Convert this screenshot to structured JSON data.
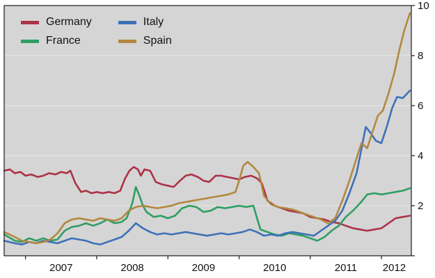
{
  "chart_data": {
    "type": "line",
    "title": "",
    "xlabel": "",
    "ylabel": "",
    "xlim": [
      2006.7,
      2012.42
    ],
    "ylim": [
      0,
      10
    ],
    "yticks": [
      0,
      2,
      4,
      6,
      8,
      10
    ],
    "ytick_labels": [
      "",
      "2",
      "4",
      "6",
      "8",
      "10"
    ],
    "xticks": [
      2007,
      2008,
      2009,
      2010,
      2011,
      2012
    ],
    "xtick_labels": [
      "2007",
      "2008",
      "2009",
      "2010",
      "2011",
      "2012"
    ],
    "grid": "horizontal-white-on-gray",
    "legend_position": "top-left",
    "plot_bg": "#d5d5d5",
    "grid_color": "#e9e9e9",
    "axis_color": "#1a1a1a",
    "tick_label_color": "#111111",
    "series": [
      {
        "name": "Germany",
        "color": "#ac3247",
        "points": [
          [
            2006.7,
            3.4
          ],
          [
            2006.78,
            3.45
          ],
          [
            2006.85,
            3.3
          ],
          [
            2006.93,
            3.35
          ],
          [
            2007.0,
            3.2
          ],
          [
            2007.08,
            3.25
          ],
          [
            2007.17,
            3.15
          ],
          [
            2007.25,
            3.2
          ],
          [
            2007.33,
            3.3
          ],
          [
            2007.42,
            3.25
          ],
          [
            2007.5,
            3.35
          ],
          [
            2007.58,
            3.3
          ],
          [
            2007.63,
            3.4
          ],
          [
            2007.7,
            2.9
          ],
          [
            2007.78,
            2.55
          ],
          [
            2007.85,
            2.6
          ],
          [
            2007.93,
            2.5
          ],
          [
            2008.0,
            2.55
          ],
          [
            2008.08,
            2.5
          ],
          [
            2008.17,
            2.55
          ],
          [
            2008.25,
            2.5
          ],
          [
            2008.33,
            2.6
          ],
          [
            2008.4,
            3.1
          ],
          [
            2008.46,
            3.4
          ],
          [
            2008.52,
            3.55
          ],
          [
            2008.58,
            3.45
          ],
          [
            2008.62,
            3.2
          ],
          [
            2008.67,
            3.45
          ],
          [
            2008.75,
            3.4
          ],
          [
            2008.83,
            2.95
          ],
          [
            2008.92,
            2.85
          ],
          [
            2009.0,
            2.8
          ],
          [
            2009.08,
            2.75
          ],
          [
            2009.17,
            3.0
          ],
          [
            2009.25,
            3.2
          ],
          [
            2009.33,
            3.25
          ],
          [
            2009.42,
            3.15
          ],
          [
            2009.5,
            3.0
          ],
          [
            2009.58,
            2.95
          ],
          [
            2009.67,
            3.2
          ],
          [
            2009.75,
            3.2
          ],
          [
            2009.83,
            3.15
          ],
          [
            2009.92,
            3.1
          ],
          [
            2010.0,
            3.05
          ],
          [
            2010.08,
            3.15
          ],
          [
            2010.17,
            3.2
          ],
          [
            2010.25,
            3.1
          ],
          [
            2010.32,
            2.9
          ],
          [
            2010.4,
            2.2
          ],
          [
            2010.5,
            2.0
          ],
          [
            2010.6,
            1.9
          ],
          [
            2010.7,
            1.8
          ],
          [
            2010.8,
            1.75
          ],
          [
            2010.9,
            1.7
          ],
          [
            2011.0,
            1.55
          ],
          [
            2011.1,
            1.5
          ],
          [
            2011.2,
            1.45
          ],
          [
            2011.3,
            1.35
          ],
          [
            2011.4,
            1.3
          ],
          [
            2011.5,
            1.2
          ],
          [
            2011.6,
            1.1
          ],
          [
            2011.7,
            1.05
          ],
          [
            2011.8,
            1.0
          ],
          [
            2011.9,
            1.05
          ],
          [
            2012.0,
            1.1
          ],
          [
            2012.1,
            1.3
          ],
          [
            2012.2,
            1.5
          ],
          [
            2012.3,
            1.55
          ],
          [
            2012.4,
            1.6
          ]
        ]
      },
      {
        "name": "France",
        "color": "#2e9e62",
        "points": [
          [
            2006.7,
            0.85
          ],
          [
            2006.85,
            0.6
          ],
          [
            2006.95,
            0.55
          ],
          [
            2007.05,
            0.7
          ],
          [
            2007.15,
            0.6
          ],
          [
            2007.25,
            0.7
          ],
          [
            2007.35,
            0.6
          ],
          [
            2007.45,
            0.65
          ],
          [
            2007.55,
            1.0
          ],
          [
            2007.65,
            1.15
          ],
          [
            2007.75,
            1.2
          ],
          [
            2007.85,
            1.3
          ],
          [
            2007.95,
            1.2
          ],
          [
            2008.05,
            1.3
          ],
          [
            2008.15,
            1.45
          ],
          [
            2008.25,
            1.3
          ],
          [
            2008.35,
            1.35
          ],
          [
            2008.42,
            1.5
          ],
          [
            2008.5,
            2.1
          ],
          [
            2008.55,
            2.75
          ],
          [
            2008.6,
            2.4
          ],
          [
            2008.65,
            2.0
          ],
          [
            2008.7,
            1.75
          ],
          [
            2008.8,
            1.55
          ],
          [
            2008.9,
            1.6
          ],
          [
            2009.0,
            1.5
          ],
          [
            2009.1,
            1.6
          ],
          [
            2009.2,
            1.9
          ],
          [
            2009.3,
            2.0
          ],
          [
            2009.4,
            1.95
          ],
          [
            2009.5,
            1.75
          ],
          [
            2009.6,
            1.8
          ],
          [
            2009.7,
            1.95
          ],
          [
            2009.8,
            1.9
          ],
          [
            2009.9,
            1.95
          ],
          [
            2010.0,
            2.0
          ],
          [
            2010.1,
            1.95
          ],
          [
            2010.2,
            2.0
          ],
          [
            2010.3,
            1.05
          ],
          [
            2010.4,
            0.95
          ],
          [
            2010.5,
            0.85
          ],
          [
            2010.6,
            0.8
          ],
          [
            2010.7,
            0.9
          ],
          [
            2010.8,
            0.85
          ],
          [
            2010.9,
            0.8
          ],
          [
            2011.0,
            0.7
          ],
          [
            2011.1,
            0.6
          ],
          [
            2011.2,
            0.75
          ],
          [
            2011.3,
            1.0
          ],
          [
            2011.4,
            1.2
          ],
          [
            2011.5,
            1.55
          ],
          [
            2011.6,
            1.8
          ],
          [
            2011.7,
            2.1
          ],
          [
            2011.8,
            2.45
          ],
          [
            2011.9,
            2.5
          ],
          [
            2012.0,
            2.45
          ],
          [
            2012.1,
            2.5
          ],
          [
            2012.2,
            2.55
          ],
          [
            2012.3,
            2.6
          ],
          [
            2012.4,
            2.7
          ]
        ]
      },
      {
        "name": "Italy",
        "color": "#3d70b8",
        "points": [
          [
            2006.7,
            0.6
          ],
          [
            2006.85,
            0.5
          ],
          [
            2006.95,
            0.45
          ],
          [
            2007.05,
            0.55
          ],
          [
            2007.15,
            0.5
          ],
          [
            2007.25,
            0.6
          ],
          [
            2007.35,
            0.55
          ],
          [
            2007.45,
            0.5
          ],
          [
            2007.55,
            0.6
          ],
          [
            2007.65,
            0.7
          ],
          [
            2007.75,
            0.65
          ],
          [
            2007.85,
            0.6
          ],
          [
            2007.95,
            0.5
          ],
          [
            2008.05,
            0.45
          ],
          [
            2008.15,
            0.55
          ],
          [
            2008.25,
            0.65
          ],
          [
            2008.35,
            0.75
          ],
          [
            2008.45,
            1.0
          ],
          [
            2008.55,
            1.3
          ],
          [
            2008.65,
            1.1
          ],
          [
            2008.75,
            0.95
          ],
          [
            2008.85,
            0.85
          ],
          [
            2008.95,
            0.9
          ],
          [
            2009.05,
            0.85
          ],
          [
            2009.15,
            0.9
          ],
          [
            2009.25,
            0.95
          ],
          [
            2009.35,
            0.9
          ],
          [
            2009.45,
            0.85
          ],
          [
            2009.55,
            0.8
          ],
          [
            2009.65,
            0.85
          ],
          [
            2009.75,
            0.9
          ],
          [
            2009.85,
            0.85
          ],
          [
            2009.95,
            0.9
          ],
          [
            2010.05,
            0.95
          ],
          [
            2010.15,
            1.05
          ],
          [
            2010.25,
            0.95
          ],
          [
            2010.35,
            0.8
          ],
          [
            2010.45,
            0.85
          ],
          [
            2010.55,
            0.8
          ],
          [
            2010.65,
            0.9
          ],
          [
            2010.75,
            0.95
          ],
          [
            2010.85,
            0.9
          ],
          [
            2010.95,
            0.85
          ],
          [
            2011.05,
            0.8
          ],
          [
            2011.15,
            1.0
          ],
          [
            2011.25,
            1.2
          ],
          [
            2011.35,
            1.4
          ],
          [
            2011.45,
            1.8
          ],
          [
            2011.55,
            2.5
          ],
          [
            2011.65,
            3.3
          ],
          [
            2011.7,
            4.0
          ],
          [
            2011.78,
            5.15
          ],
          [
            2011.85,
            4.9
          ],
          [
            2011.92,
            4.6
          ],
          [
            2012.0,
            4.5
          ],
          [
            2012.08,
            5.2
          ],
          [
            2012.15,
            5.9
          ],
          [
            2012.22,
            6.35
          ],
          [
            2012.3,
            6.3
          ],
          [
            2012.4,
            6.6
          ]
        ]
      },
      {
        "name": "Spain",
        "color": "#b2883e",
        "points": [
          [
            2006.7,
            0.95
          ],
          [
            2006.85,
            0.75
          ],
          [
            2006.95,
            0.6
          ],
          [
            2007.05,
            0.55
          ],
          [
            2007.15,
            0.5
          ],
          [
            2007.25,
            0.55
          ],
          [
            2007.35,
            0.65
          ],
          [
            2007.45,
            0.9
          ],
          [
            2007.55,
            1.3
          ],
          [
            2007.65,
            1.45
          ],
          [
            2007.75,
            1.5
          ],
          [
            2007.85,
            1.45
          ],
          [
            2007.95,
            1.4
          ],
          [
            2008.05,
            1.5
          ],
          [
            2008.15,
            1.45
          ],
          [
            2008.25,
            1.4
          ],
          [
            2008.35,
            1.5
          ],
          [
            2008.45,
            1.8
          ],
          [
            2008.55,
            1.95
          ],
          [
            2008.65,
            2.0
          ],
          [
            2008.75,
            1.95
          ],
          [
            2008.85,
            1.9
          ],
          [
            2008.95,
            1.95
          ],
          [
            2009.05,
            2.0
          ],
          [
            2009.15,
            2.1
          ],
          [
            2009.25,
            2.15
          ],
          [
            2009.35,
            2.2
          ],
          [
            2009.45,
            2.25
          ],
          [
            2009.55,
            2.3
          ],
          [
            2009.65,
            2.35
          ],
          [
            2009.75,
            2.4
          ],
          [
            2009.85,
            2.45
          ],
          [
            2009.95,
            2.55
          ],
          [
            2010.0,
            3.0
          ],
          [
            2010.06,
            3.6
          ],
          [
            2010.12,
            3.75
          ],
          [
            2010.2,
            3.55
          ],
          [
            2010.28,
            3.3
          ],
          [
            2010.35,
            2.4
          ],
          [
            2010.45,
            2.05
          ],
          [
            2010.55,
            1.95
          ],
          [
            2010.65,
            1.9
          ],
          [
            2010.75,
            1.85
          ],
          [
            2010.85,
            1.75
          ],
          [
            2010.95,
            1.65
          ],
          [
            2011.05,
            1.55
          ],
          [
            2011.15,
            1.45
          ],
          [
            2011.25,
            1.3
          ],
          [
            2011.35,
            1.5
          ],
          [
            2011.45,
            2.2
          ],
          [
            2011.55,
            3.0
          ],
          [
            2011.65,
            3.9
          ],
          [
            2011.72,
            4.5
          ],
          [
            2011.8,
            4.3
          ],
          [
            2011.88,
            5.0
          ],
          [
            2011.95,
            5.6
          ],
          [
            2012.02,
            5.8
          ],
          [
            2012.1,
            6.5
          ],
          [
            2012.18,
            7.3
          ],
          [
            2012.25,
            8.2
          ],
          [
            2012.32,
            9.0
          ],
          [
            2012.4,
            9.7
          ]
        ]
      }
    ]
  }
}
